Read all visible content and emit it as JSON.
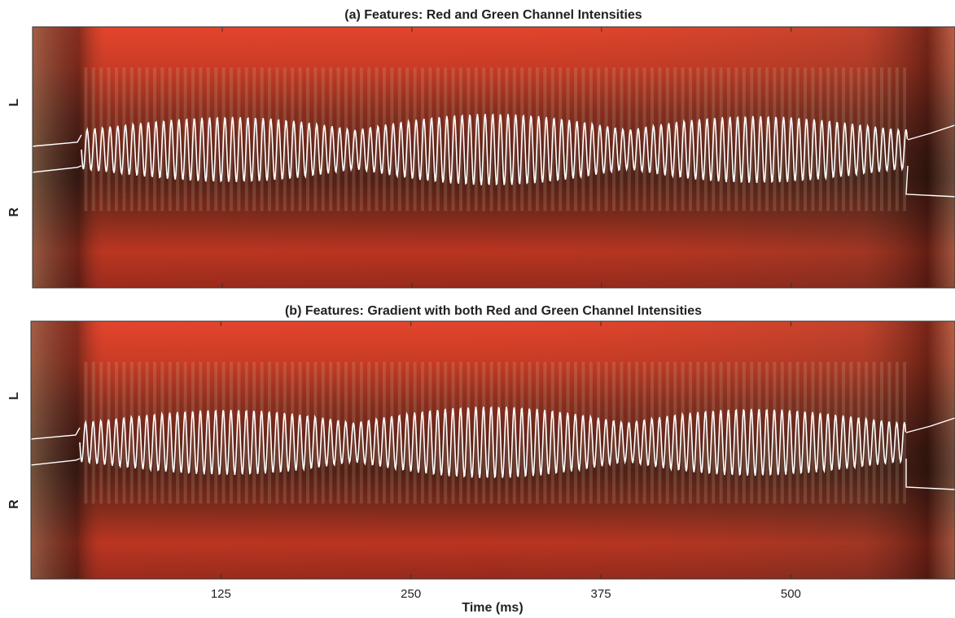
{
  "chart_data": [
    {
      "type": "image",
      "title": "(a)  Features: Red and Green Channel Intensities",
      "ylabels": [
        "L",
        "R"
      ]
    },
    {
      "type": "image",
      "title": "(b)  Features: Gradient with both Red and Green Channel Intensities",
      "ylabels": [
        "L",
        "R"
      ],
      "xlabel": "Time (ms)",
      "xlim": [
        0,
        608
      ],
      "xticks": [
        125,
        250,
        375,
        500
      ]
    }
  ]
}
